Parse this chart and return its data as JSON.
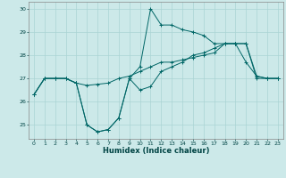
{
  "xlabel": "Humidex (Indice chaleur)",
  "xlim": [
    -0.5,
    23.5
  ],
  "ylim": [
    24.4,
    30.3
  ],
  "yticks": [
    25,
    26,
    27,
    28,
    29,
    30
  ],
  "xticks": [
    0,
    1,
    2,
    3,
    4,
    5,
    6,
    7,
    8,
    9,
    10,
    11,
    12,
    13,
    14,
    15,
    16,
    17,
    18,
    19,
    20,
    21,
    22,
    23
  ],
  "bg_color": "#cce9e9",
  "grid_color": "#aad4d4",
  "line_color": "#006666",
  "series1_y": [
    26.3,
    27.0,
    27.0,
    27.0,
    26.8,
    26.7,
    26.75,
    26.8,
    27.0,
    27.1,
    27.3,
    27.5,
    27.7,
    27.7,
    27.8,
    27.9,
    28.0,
    28.1,
    28.5,
    28.5,
    28.5,
    27.0,
    27.0,
    27.0
  ],
  "series2_y": [
    26.3,
    27.0,
    27.0,
    27.0,
    26.8,
    25.0,
    24.7,
    24.8,
    25.3,
    27.0,
    26.5,
    26.65,
    27.3,
    27.5,
    27.7,
    28.0,
    28.1,
    28.3,
    28.5,
    28.5,
    28.5,
    27.1,
    27.0,
    27.0
  ],
  "series3_y": [
    26.3,
    27.0,
    27.0,
    27.0,
    26.8,
    25.0,
    24.7,
    24.8,
    25.3,
    27.0,
    27.5,
    30.0,
    29.3,
    29.3,
    29.1,
    29.0,
    28.85,
    28.5,
    28.5,
    28.5,
    27.7,
    27.1,
    27.0,
    27.0
  ]
}
